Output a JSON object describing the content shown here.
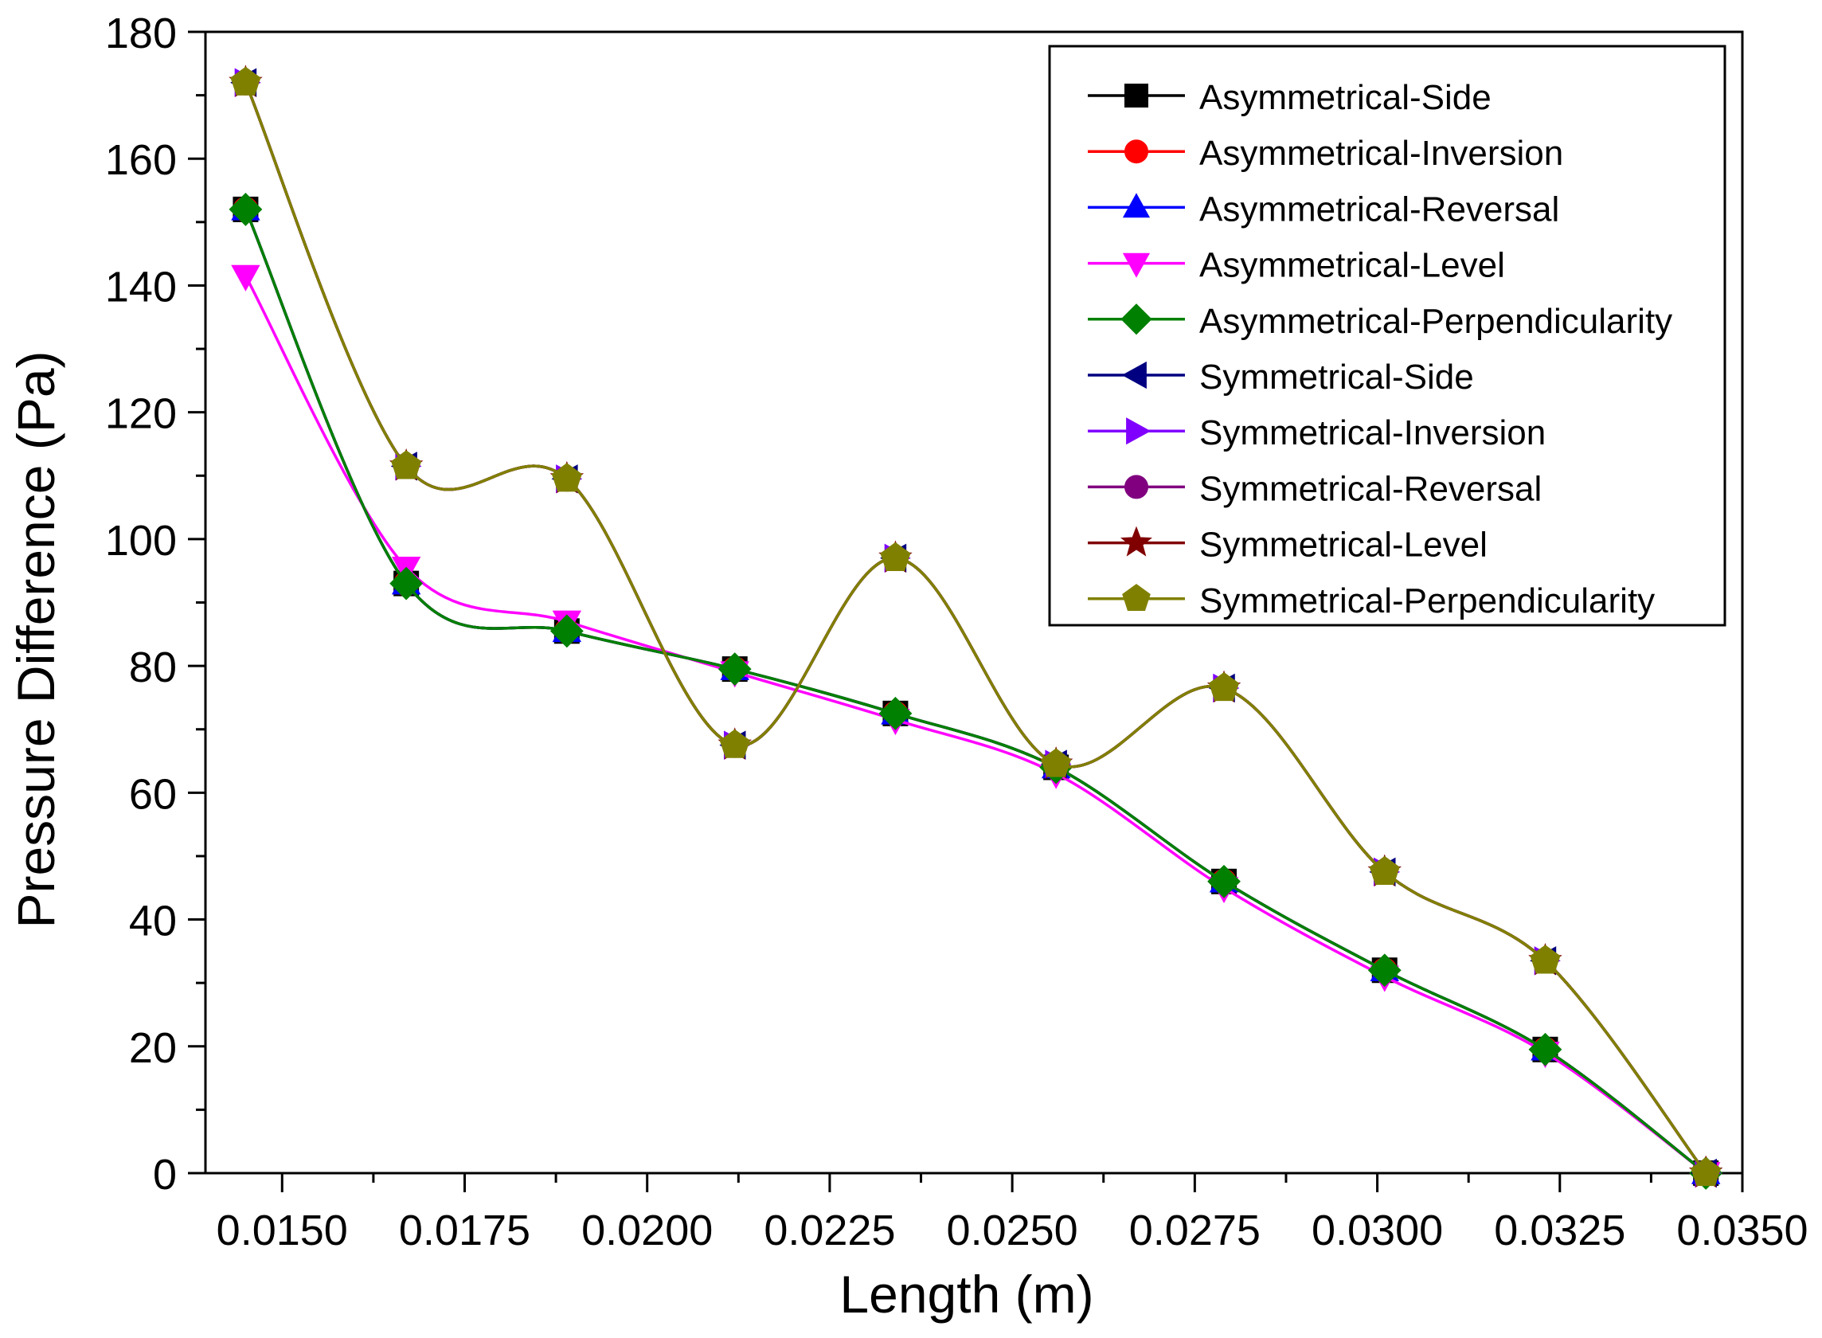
{
  "chart_data": {
    "type": "line",
    "xlabel": "Length (m)",
    "ylabel": "Pressure Difference (Pa)",
    "xlim": [
      0.01395,
      0.035
    ],
    "ylim": [
      0,
      180
    ],
    "xticks": [
      0.015,
      0.0175,
      0.02,
      0.0225,
      0.025,
      0.0275,
      0.03,
      0.0325,
      0.035
    ],
    "xtick_labels": [
      "0.0150",
      "0.0175",
      "0.0200",
      "0.0225",
      "0.0250",
      "0.0275",
      "0.0300",
      "0.0325",
      "0.0350"
    ],
    "yticks": [
      0,
      20,
      40,
      60,
      80,
      100,
      120,
      140,
      160,
      180
    ],
    "ytick_labels": [
      "0",
      "20",
      "40",
      "60",
      "80",
      "100",
      "120",
      "140",
      "160",
      "180"
    ],
    "legend_position": "top-right",
    "x": [
      0.0145,
      0.0167,
      0.0189,
      0.0212,
      0.0234,
      0.0256,
      0.0279,
      0.0301,
      0.0323,
      0.0345
    ],
    "series": [
      {
        "name": "Asymmetrical-Side",
        "color": "#000000",
        "marker": "square",
        "values": [
          152,
          93,
          85.5,
          79.5,
          72.5,
          64,
          46,
          32,
          19.5,
          0
        ]
      },
      {
        "name": "Asymmetrical-Inversion",
        "color": "#ff0000",
        "marker": "circle",
        "values": [
          152,
          93,
          85.5,
          79.5,
          72.5,
          64,
          46,
          32,
          19.5,
          0
        ]
      },
      {
        "name": "Asymmetrical-Reversal",
        "color": "#0000ff",
        "marker": "triangle-up",
        "values": [
          152,
          93,
          85.5,
          79.5,
          72.5,
          64,
          46,
          32,
          19.5,
          0
        ]
      },
      {
        "name": "Asymmetrical-Level",
        "color": "#ff00ff",
        "marker": "triangle-down",
        "values": [
          141.5,
          95.5,
          87,
          79,
          71.5,
          63,
          45,
          31,
          19,
          0
        ]
      },
      {
        "name": "Asymmetrical-Perpendicularity",
        "color": "#008000",
        "marker": "diamond",
        "values": [
          152,
          93,
          85.5,
          79.5,
          72.5,
          64,
          46,
          32,
          19.5,
          0
        ]
      },
      {
        "name": "Symmetrical-Side",
        "color": "#000080",
        "marker": "triangle-left",
        "values": [
          172,
          111.5,
          109.5,
          67.5,
          97,
          64.5,
          76.5,
          47.5,
          33.5,
          0
        ]
      },
      {
        "name": "Symmetrical-Inversion",
        "color": "#8000ff",
        "marker": "triangle-right",
        "values": [
          172,
          111.5,
          109.5,
          67.5,
          97,
          64.5,
          76.5,
          47.5,
          33.5,
          0
        ]
      },
      {
        "name": "Symmetrical-Reversal",
        "color": "#800080",
        "marker": "circle",
        "values": [
          172,
          111.5,
          109.5,
          67.5,
          97,
          64.5,
          76.5,
          47.5,
          33.5,
          0
        ]
      },
      {
        "name": "Symmetrical-Level",
        "color": "#800000",
        "marker": "star",
        "values": [
          172,
          111.5,
          109.5,
          67.5,
          97,
          64.5,
          76.5,
          47.5,
          33.5,
          0
        ]
      },
      {
        "name": "Symmetrical-Perpendicularity",
        "color": "#808000",
        "marker": "pentagon",
        "values": [
          172,
          111.5,
          109.5,
          67.5,
          97,
          64.5,
          76.5,
          47.5,
          33.5,
          0
        ]
      }
    ]
  }
}
